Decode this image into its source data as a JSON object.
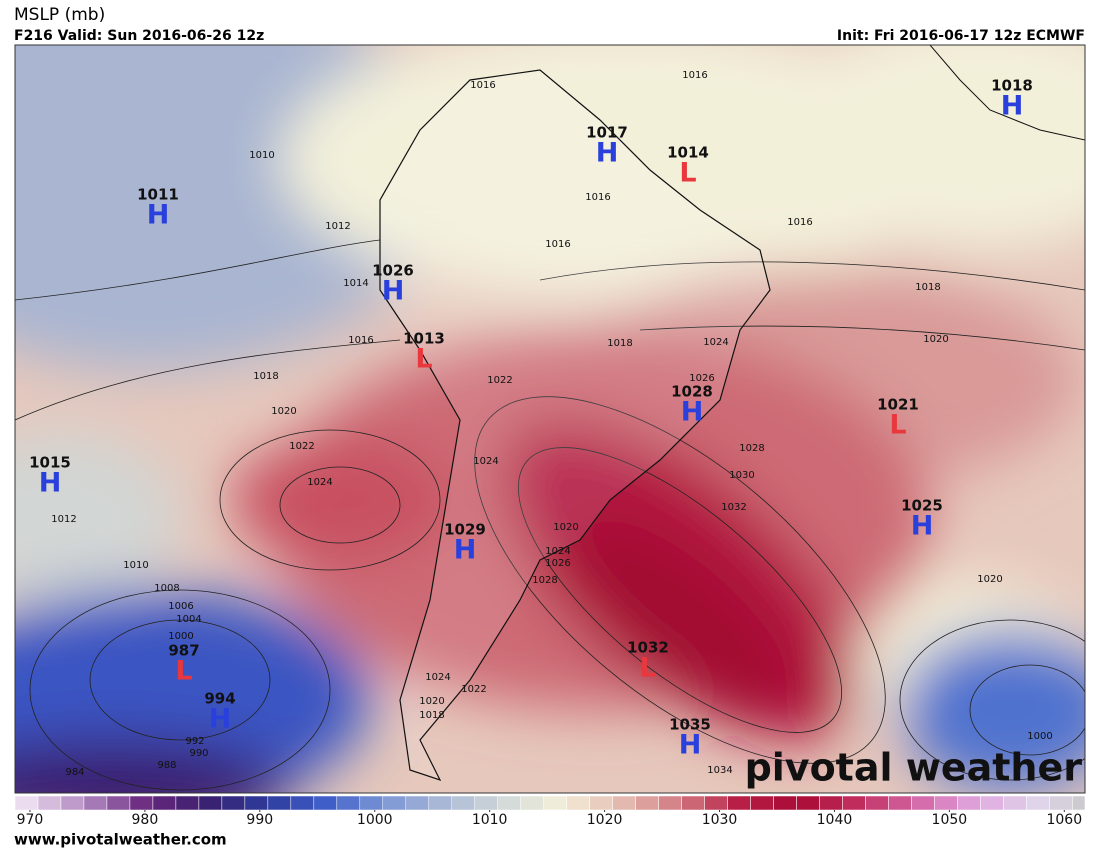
{
  "header": {
    "title": "MSLP (mb)",
    "valid": "F216 Valid: Sun 2016-06-26 12z",
    "init": "Init: Fri 2016-06-17 12z ECMWF"
  },
  "centers": [
    {
      "symbol": "H",
      "value": 1011
    },
    {
      "symbol": "H",
      "value": 1017
    },
    {
      "symbol": "L",
      "value": 1014
    },
    {
      "symbol": "H",
      "value": 1018
    },
    {
      "symbol": "H",
      "value": 1026
    },
    {
      "symbol": "L",
      "value": 1013
    },
    {
      "symbol": "H",
      "value": 1028
    },
    {
      "symbol": "L",
      "value": 1021
    },
    {
      "symbol": "H",
      "value": 1015
    },
    {
      "symbol": "H",
      "value": 1029
    },
    {
      "symbol": "H",
      "value": 1025
    },
    {
      "symbol": "L",
      "value": 987
    },
    {
      "symbol": "H",
      "value": 994
    },
    {
      "symbol": "L",
      "value": 1032
    },
    {
      "symbol": "H",
      "value": 1035
    }
  ],
  "contours": [
    1016,
    1016,
    1010,
    1012,
    1016,
    1016,
    1016,
    1014,
    1018,
    1016,
    1018,
    1024,
    1020,
    1018,
    1022,
    1026,
    1020,
    1022,
    1028,
    1024,
    1030,
    1024,
    1032,
    1012,
    1020,
    1024,
    1026,
    1010,
    1028,
    1020,
    1008,
    1006,
    1004,
    1000,
    1024,
    1022,
    1020,
    1018,
    1000,
    992,
    990,
    988,
    984,
    1034
  ],
  "colorbar": {
    "lim": [
      968.7,
      1061.8
    ],
    "step": 2,
    "ticks": [
      970,
      980,
      990,
      1000,
      1010,
      1020,
      1030,
      1040,
      1050,
      1060
    ],
    "colors": [
      "#ecdcf0",
      "#b088c0",
      "#6a2a80",
      "#3a1f6e",
      "#2e3a9a",
      "#3d5cc8",
      "#7a95d6",
      "#aab8d6",
      "#d0d8d8",
      "#f3f0da",
      "#e4bcb0",
      "#d27a82",
      "#b81e45",
      "#a80a35",
      "#c23060",
      "#d468a8",
      "#e0a8e0",
      "#e0d4ea",
      "#c8c8c8"
    ]
  },
  "watermark": "pivotal weather",
  "footer": "www.pivotalweather.com"
}
